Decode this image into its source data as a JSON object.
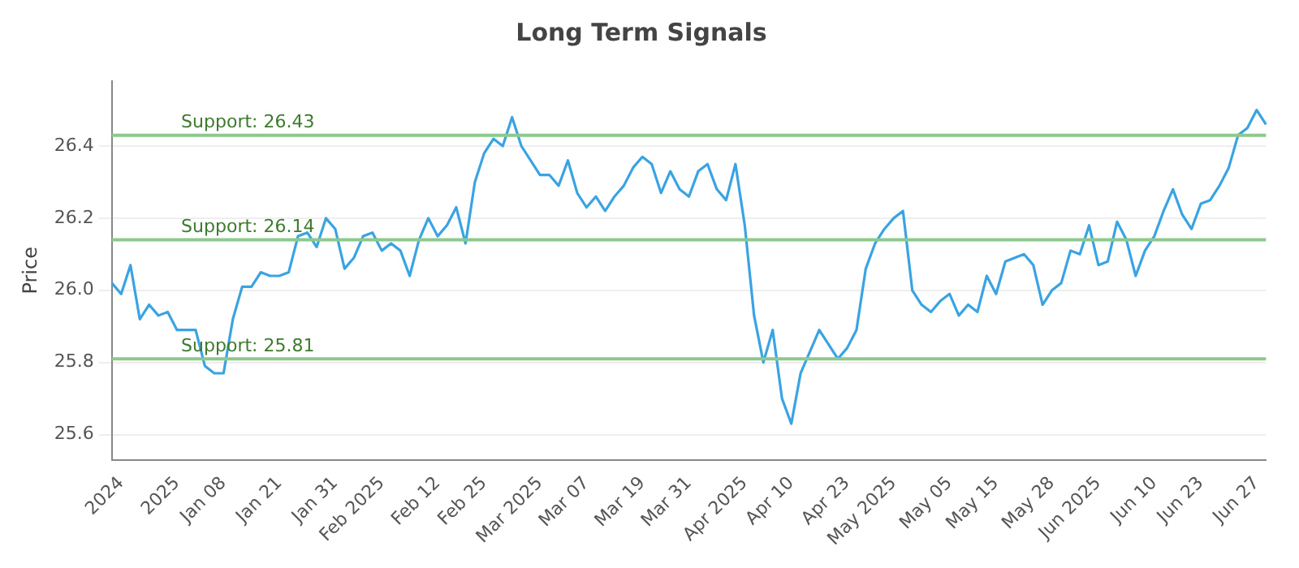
{
  "chart_data": {
    "type": "line",
    "title": "Long Term Signals",
    "ylabel": "Price",
    "categories": [
      null,
      "2024",
      null,
      null,
      null,
      null,
      null,
      "2025",
      null,
      null,
      null,
      null,
      "Jan 08",
      null,
      null,
      null,
      null,
      null,
      "Jan 21",
      null,
      null,
      null,
      null,
      null,
      "Jan 31",
      null,
      null,
      null,
      null,
      "Feb 2025",
      null,
      null,
      null,
      null,
      null,
      "Feb 12",
      null,
      null,
      null,
      null,
      "Feb 25",
      null,
      null,
      null,
      null,
      null,
      "Mar 2025",
      null,
      null,
      null,
      null,
      "Mar 07",
      null,
      null,
      null,
      null,
      null,
      "Mar 19",
      null,
      null,
      null,
      null,
      "Mar 31",
      null,
      null,
      null,
      null,
      null,
      "Apr 2025",
      null,
      null,
      null,
      null,
      "Apr 10",
      null,
      null,
      null,
      null,
      null,
      "Apr 23",
      null,
      null,
      null,
      null,
      "May 2025",
      null,
      null,
      null,
      null,
      null,
      "May 05",
      null,
      null,
      null,
      null,
      "May 15",
      null,
      null,
      null,
      null,
      null,
      "May 28",
      null,
      null,
      null,
      null,
      "Jun 2025",
      null,
      null,
      null,
      null,
      null,
      "Jun 10",
      null,
      null,
      null,
      null,
      "Jun 23",
      null,
      null,
      null,
      null,
      null,
      "Jun 27",
      null
    ],
    "series": [
      {
        "color": "#3aa3e3",
        "values": [
          26.02,
          25.99,
          26.07,
          25.92,
          25.96,
          25.93,
          25.94,
          25.89,
          25.89,
          25.89,
          25.79,
          25.77,
          25.77,
          25.92,
          26.01,
          26.01,
          26.05,
          26.04,
          26.04,
          26.05,
          26.15,
          26.16,
          26.12,
          26.2,
          26.17,
          26.06,
          26.09,
          26.15,
          26.16,
          26.11,
          26.13,
          26.11,
          26.04,
          26.14,
          26.2,
          26.15,
          26.18,
          26.23,
          26.13,
          26.3,
          26.38,
          26.42,
          26.4,
          26.48,
          26.4,
          26.36,
          26.32,
          26.32,
          26.29,
          26.36,
          26.27,
          26.23,
          26.26,
          26.22,
          26.26,
          26.29,
          26.34,
          26.37,
          26.35,
          26.27,
          26.33,
          26.28,
          26.26,
          26.33,
          26.35,
          26.28,
          26.25,
          26.35,
          26.18,
          25.93,
          25.8,
          25.89,
          25.7,
          25.63,
          25.77,
          25.83,
          25.89,
          25.85,
          25.81,
          25.84,
          25.89,
          26.06,
          26.13,
          26.17,
          26.2,
          26.22,
          26.0,
          25.96,
          25.94,
          25.97,
          25.99,
          25.93,
          25.96,
          25.94,
          26.04,
          25.99,
          26.08,
          26.09,
          26.1,
          26.07,
          25.96,
          26.0,
          26.02,
          26.11,
          26.1,
          26.18,
          26.07,
          26.08,
          26.19,
          26.14,
          26.04,
          26.11,
          26.15,
          26.22,
          26.28,
          26.21,
          26.17,
          26.24,
          26.25,
          26.29,
          26.34,
          26.43,
          26.45,
          26.5,
          26.46
        ]
      }
    ],
    "ylim": [
      25.53,
      26.58
    ],
    "yticks": [
      {
        "value": 25.6,
        "label": "25.6"
      },
      {
        "value": 25.8,
        "label": "25.8"
      },
      {
        "value": 26.0,
        "label": "26.0"
      },
      {
        "value": 26.2,
        "label": "26.2"
      },
      {
        "value": 26.4,
        "label": "26.4"
      }
    ],
    "grid": "y",
    "marker": "none",
    "line_style": "solid",
    "legend": false,
    "ref_lines": [
      {
        "axis": "y",
        "value": 26.43,
        "label": "Support: 26.43",
        "color": "#8cc98c"
      },
      {
        "axis": "y",
        "value": 26.14,
        "label": "Support: 26.14",
        "color": "#8cc98c"
      },
      {
        "axis": "y",
        "value": 25.81,
        "label": "Support: 25.81",
        "color": "#8cc98c"
      }
    ]
  }
}
